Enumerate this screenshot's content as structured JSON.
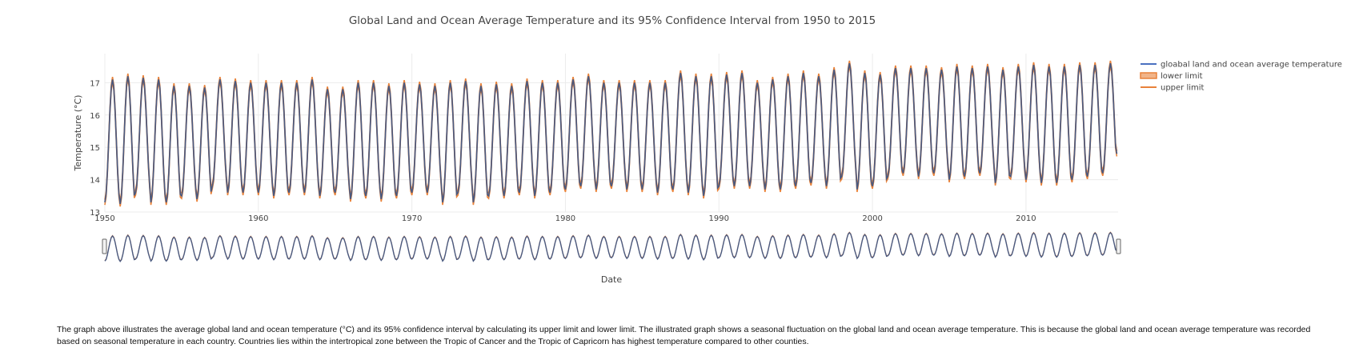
{
  "chart_data": {
    "type": "line",
    "title": "Global Land and Ocean Average Temperature and its 95% Confidence Interval from 1950 to 2015",
    "xlabel": "Date",
    "ylabel": "Temperature (°C)",
    "x_range": [
      "1950-01",
      "2015-12"
    ],
    "x_tick_labels": [
      "1950",
      "1960",
      "1970",
      "1980",
      "1990",
      "2000",
      "2010"
    ],
    "ylim": [
      13,
      17.9
    ],
    "y_tick_labels": [
      "13",
      "14",
      "15",
      "16",
      "17"
    ],
    "grid": true,
    "legend_position": "top-right",
    "range_slider": true,
    "series": [
      {
        "name": "gloabal land and ocean average temperature",
        "color": "#4a5a80"
      },
      {
        "name": "lower limit",
        "color": "#e8823a"
      },
      {
        "name": "upper limit",
        "color": "#e8823a"
      }
    ],
    "seasonal_pattern": {
      "description": "monthly series with annual cycle; values per year",
      "years": [
        1950,
        1951,
        1952,
        1953,
        1954,
        1955,
        1956,
        1957,
        1958,
        1959,
        1960,
        1961,
        1962,
        1963,
        1964,
        1965,
        1966,
        1967,
        1968,
        1969,
        1970,
        1971,
        1972,
        1973,
        1974,
        1975,
        1976,
        1977,
        1978,
        1979,
        1980,
        1981,
        1982,
        1983,
        1984,
        1985,
        1986,
        1987,
        1988,
        1989,
        1990,
        1991,
        1992,
        1993,
        1994,
        1995,
        1996,
        1997,
        1998,
        1999,
        2000,
        2001,
        2002,
        2003,
        2004,
        2005,
        2006,
        2007,
        2008,
        2009,
        2010,
        2011,
        2012,
        2013,
        2014,
        2015
      ],
      "annual_max": [
        17.1,
        17.2,
        17.15,
        17.1,
        16.9,
        16.9,
        16.85,
        17.1,
        17.05,
        17.0,
        17.0,
        17.0,
        17.0,
        17.1,
        16.8,
        16.8,
        17.0,
        17.0,
        16.9,
        17.0,
        16.95,
        16.9,
        17.0,
        17.05,
        16.9,
        16.95,
        16.9,
        17.05,
        17.0,
        17.0,
        17.1,
        17.2,
        17.0,
        17.0,
        17.0,
        17.0,
        17.0,
        17.3,
        17.2,
        17.2,
        17.25,
        17.3,
        17.0,
        17.1,
        17.2,
        17.3,
        17.2,
        17.4,
        17.6,
        17.3,
        17.25,
        17.45,
        17.45,
        17.45,
        17.4,
        17.5,
        17.45,
        17.5,
        17.4,
        17.5,
        17.55,
        17.5,
        17.5,
        17.55,
        17.55,
        17.6
      ],
      "annual_min": [
        13.3,
        13.25,
        13.6,
        13.3,
        13.3,
        13.5,
        13.4,
        13.8,
        13.6,
        13.6,
        13.6,
        13.5,
        13.6,
        13.6,
        13.5,
        13.6,
        13.4,
        13.5,
        13.4,
        13.5,
        13.6,
        13.6,
        13.3,
        13.6,
        13.3,
        13.5,
        13.5,
        13.6,
        13.5,
        13.6,
        13.7,
        13.8,
        13.7,
        13.8,
        13.7,
        13.7,
        13.6,
        13.7,
        13.6,
        13.5,
        13.8,
        13.8,
        13.8,
        13.7,
        13.7,
        13.8,
        13.9,
        13.8,
        14.1,
        13.7,
        13.8,
        14.1,
        14.2,
        14.1,
        14.2,
        14.0,
        14.1,
        14.2,
        13.9,
        14.1,
        14.0,
        13.9,
        13.9,
        14.0,
        14.1,
        14.2
      ],
      "ci_halfwidth": 0.08,
      "last_value": 14.8
    }
  },
  "caption": "The graph above illustrates the average global land and ocean temperature (°C) and its 95% confidence interval by calculating its upper limit and lower limit. The illustrated graph shows a seasonal fluctuation on the global land and ocean average temperature. This is because the global land and ocean average temperature was recorded based on seasonal temperature in each country. Countries lies within the intertropical zone between the Tropic of Cancer and the Tropic of Capricorn has highest temperature compared to other counties."
}
